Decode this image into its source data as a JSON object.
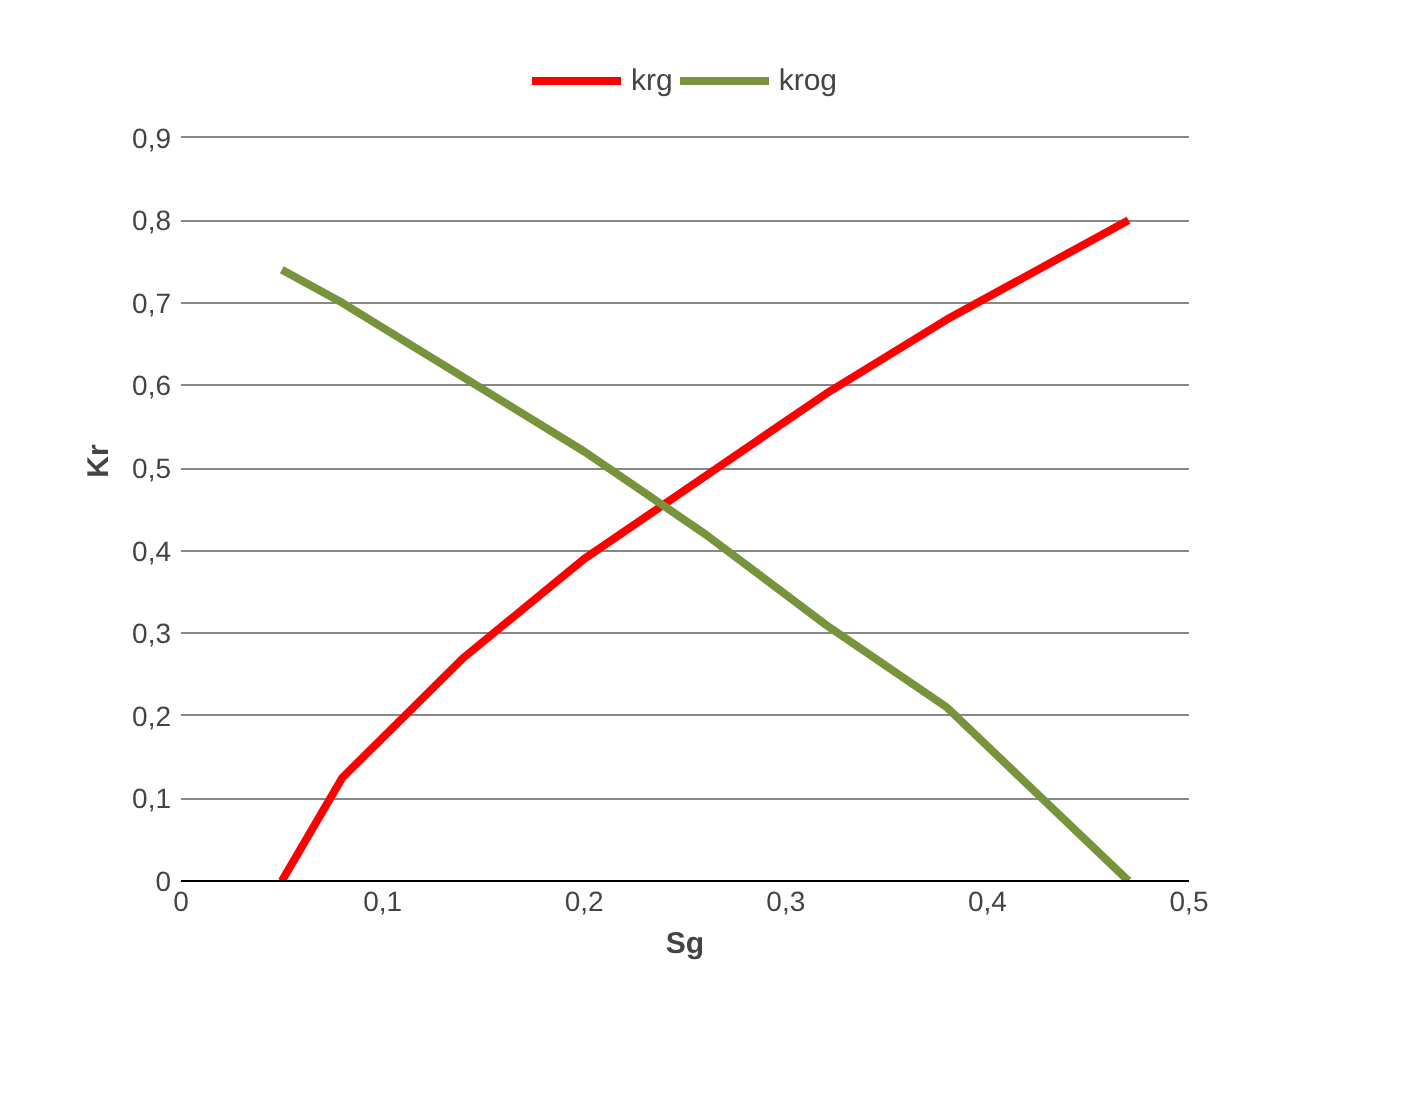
{
  "chart_data": {
    "type": "line",
    "xlabel": "Sg",
    "ylabel": "Kr",
    "x": [
      0.05,
      0.08,
      0.14,
      0.2,
      0.26,
      0.32,
      0.38,
      0.47
    ],
    "series": [
      {
        "name": "krg",
        "color": "#ff0000",
        "values": [
          0,
          0.125,
          0.27,
          0.39,
          0.49,
          0.59,
          0.68,
          0.8
        ]
      },
      {
        "name": "krog",
        "color": "#77933c",
        "values": [
          0.74,
          0.7,
          0.61,
          0.52,
          0.42,
          0.31,
          0.21,
          0
        ]
      }
    ],
    "xlim": [
      0,
      0.5
    ],
    "xticks": [
      {
        "value": 0,
        "label": "0"
      },
      {
        "value": 0.1,
        "label": "0,1"
      },
      {
        "value": 0.2,
        "label": "0,2"
      },
      {
        "value": 0.3,
        "label": "0,3"
      },
      {
        "value": 0.4,
        "label": "0,4"
      },
      {
        "value": 0.5,
        "label": "0,5"
      }
    ],
    "ylim": [
      0,
      0.9
    ],
    "yticks": [
      {
        "value": 0,
        "label": "0"
      },
      {
        "value": 0.1,
        "label": "0,1"
      },
      {
        "value": 0.2,
        "label": "0,2"
      },
      {
        "value": 0.3,
        "label": "0,3"
      },
      {
        "value": 0.4,
        "label": "0,4"
      },
      {
        "value": 0.5,
        "label": "0,5"
      },
      {
        "value": 0.6,
        "label": "0,6"
      },
      {
        "value": 0.7,
        "label": "0,7"
      },
      {
        "value": 0.8,
        "label": "0,8"
      },
      {
        "value": 0.9,
        "label": "0,9"
      }
    ],
    "grid": "y",
    "legend": "top",
    "marker": "none",
    "line_style": "solid"
  }
}
